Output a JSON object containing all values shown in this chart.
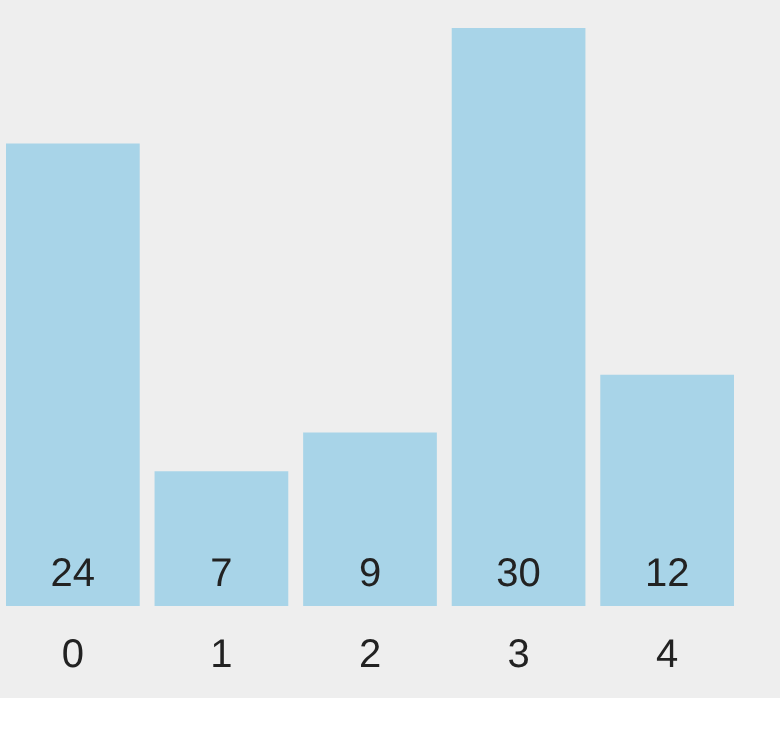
{
  "chart_data": {
    "type": "bar",
    "categories": [
      "0",
      "1",
      "2",
      "3",
      "4"
    ],
    "values": [
      24,
      7,
      9,
      30,
      12
    ],
    "color": "#a8d4e8",
    "data_labels": true
  }
}
